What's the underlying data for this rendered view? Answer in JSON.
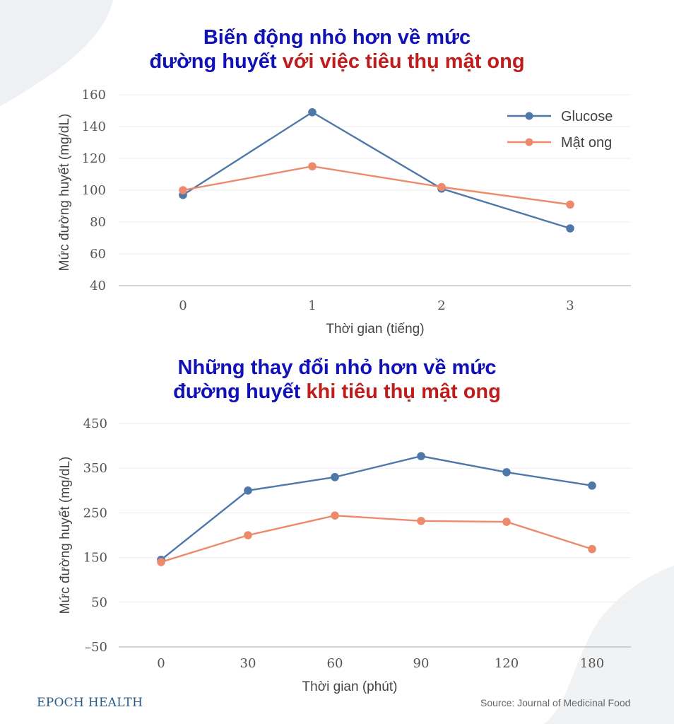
{
  "colors": {
    "glucose": "#4f78aa",
    "honey": "#ec8a6b",
    "title_blue": "#1111b8",
    "title_red": "#c01c1c"
  },
  "chart_data": [
    {
      "type": "line",
      "title_blue_1": "Biến động nhỏ hơn về mức",
      "title_blue_2": "đường huyết",
      "title_red_2": "với việc tiêu thụ mật ong",
      "xlabel": "Thời gian (tiếng)",
      "ylabel": "Mức đường huyết (mg/dL)",
      "x": [
        "0",
        "1",
        "2",
        "3"
      ],
      "yticks": [
        40,
        60,
        80,
        100,
        120,
        140,
        160
      ],
      "ylim": [
        40,
        160
      ],
      "legend": "top-right",
      "series": [
        {
          "name": "Glucose",
          "values": [
            97,
            149,
            101,
            76
          ]
        },
        {
          "name": "Mật ong",
          "values": [
            100,
            115,
            102,
            91
          ]
        }
      ]
    },
    {
      "type": "line",
      "title_blue_1": "Những thay đổi nhỏ hơn về mức",
      "title_blue_2": "đường huyết",
      "title_red_2": "khi tiêu thụ mật ong",
      "xlabel": "Thời gian (phút)",
      "ylabel": "Mức đường huyết (mg/dL)",
      "x": [
        "0",
        "30",
        "60",
        "90",
        "120",
        "180"
      ],
      "yticks": [
        -50,
        50,
        150,
        250,
        350,
        450
      ],
      "ytick_labels": [
        "–50",
        "50",
        "150",
        "250",
        "350",
        "450"
      ],
      "ylim": [
        -50,
        450
      ],
      "series": [
        {
          "name": "Glucose",
          "values": [
            145,
            300,
            330,
            377,
            341,
            311
          ]
        },
        {
          "name": "Mật ong",
          "values": [
            140,
            200,
            244,
            232,
            230,
            169
          ]
        }
      ]
    }
  ],
  "footer": {
    "brand": "EPOCH HEALTH",
    "source": "Source: Journal of Medicinal Food"
  }
}
